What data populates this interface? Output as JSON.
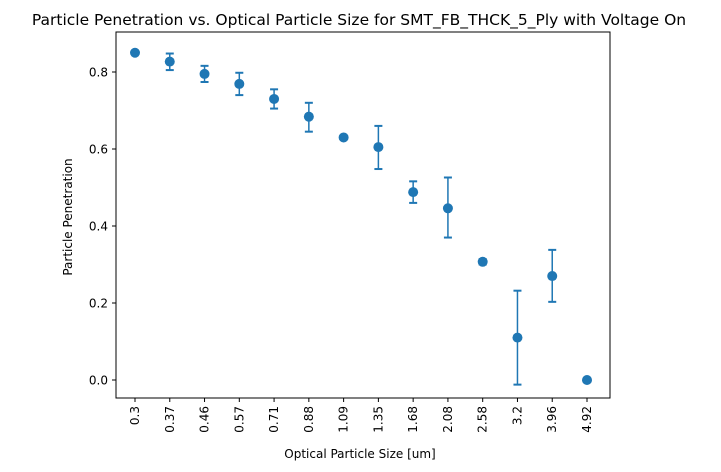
{
  "chart_data": {
    "type": "scatter",
    "title": "Particle Penetration vs. Optical Particle Size for SMT_FB_THCK_5_Ply with Voltage On",
    "xlabel": "Optical Particle Size [um]",
    "ylabel": "Particle Penetration",
    "categories": [
      "0.3",
      "0.37",
      "0.46",
      "0.57",
      "0.71",
      "0.88",
      "1.09",
      "1.35",
      "1.68",
      "2.08",
      "2.58",
      "3.2",
      "3.96",
      "4.92"
    ],
    "ylim": [
      -0.05,
      0.9
    ],
    "yticks": [
      0.0,
      0.2,
      0.4,
      0.6,
      0.8
    ],
    "ytick_labels": [
      "0.0",
      "0.2",
      "0.4",
      "0.6",
      "0.8"
    ],
    "grid": false,
    "series": [
      {
        "values": [
          0.85,
          0.827,
          0.795,
          0.769,
          0.73,
          0.684,
          0.63,
          0.605,
          0.488,
          0.446,
          0.307,
          0.11,
          0.27,
          0.0
        ],
        "err_low": [
          0.85,
          0.805,
          0.774,
          0.74,
          0.705,
          0.645,
          0.63,
          0.548,
          0.46,
          0.37,
          0.3,
          -0.012,
          0.203,
          0.0
        ],
        "err_high": [
          0.85,
          0.848,
          0.816,
          0.798,
          0.755,
          0.72,
          0.63,
          0.66,
          0.516,
          0.526,
          0.314,
          0.232,
          0.338,
          0.0
        ],
        "color": "#1f77b4"
      }
    ]
  }
}
